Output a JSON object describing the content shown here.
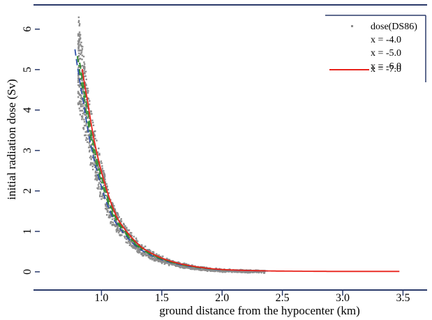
{
  "chart_data": {
    "type": "scatter",
    "title": "",
    "xlabel": "ground distance from the hypocenter (km)",
    "ylabel": "initial radiation dose (Sv)",
    "xlim": [
      0.5,
      3.7
    ],
    "ylim": [
      -0.45,
      6.6
    ],
    "x_ticks": [
      "1.0",
      "1.5",
      "2.0",
      "2.5",
      "3.0",
      "3.5"
    ],
    "y_ticks": [
      "0",
      "1",
      "2",
      "3",
      "4",
      "5",
      "6"
    ],
    "grid": false,
    "legend_position": "top-right",
    "scatter_series": {
      "name": "dose(DS86)",
      "color": "#8c8c8c",
      "envelope": {
        "x": [
          0.78,
          0.85,
          0.9,
          1.0,
          1.1,
          1.2,
          1.3,
          1.5,
          1.7,
          2.0,
          2.4,
          2.9
        ],
        "y": [
          5.5,
          4.2,
          3.3,
          2.1,
          1.3,
          0.9,
          0.6,
          0.3,
          0.15,
          0.05,
          0.02,
          0.01
        ]
      }
    },
    "series": [
      {
        "name": "x = -4.0",
        "color": "#2e4fa8",
        "dash": "dashed",
        "x_range": [
          0.78,
          2.38
        ]
      },
      {
        "name": "x = -5.0",
        "color": "#2e8b2e",
        "dash": "dashdot",
        "x_range": [
          0.8,
          2.05
        ]
      },
      {
        "name": "x = -6.0",
        "color": "#2e8b2e",
        "dash": "dashed",
        "x_range": [
          0.82,
          1.9
        ]
      },
      {
        "name": "x = -7.0",
        "color": "#e8231c",
        "dash": "solid",
        "x_range": [
          0.84,
          3.47
        ]
      }
    ]
  }
}
